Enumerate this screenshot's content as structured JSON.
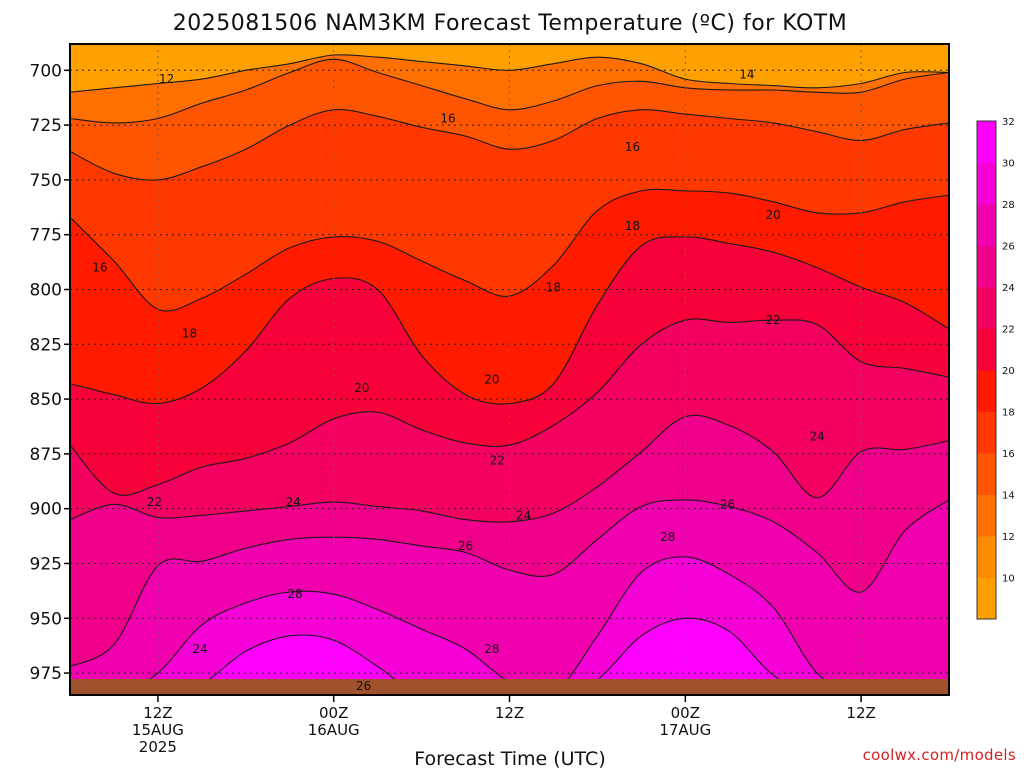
{
  "chart_data": {
    "type": "heatmap",
    "title": "2025081506 NAM3KM Forecast Temperature (ºC) for KOTM",
    "xlabel": "Forecast Time (UTC)",
    "ylabel": "",
    "credit": "coolwx.com/models",
    "y_axis": {
      "ticks": [
        700,
        725,
        750,
        775,
        800,
        825,
        850,
        875,
        900,
        925,
        950,
        975
      ],
      "range": [
        688,
        985
      ]
    },
    "x_axis": {
      "range_hours": [
        -5,
        45
      ],
      "ticks": [
        {
          "hour": 0,
          "line1": "12Z",
          "line2": "15AUG",
          "line3": "2025"
        },
        {
          "hour": 10,
          "line1": "00Z",
          "line2": "16AUG",
          "line3": ""
        },
        {
          "hour": 20,
          "line1": "12Z",
          "line2": "",
          "line3": ""
        },
        {
          "hour": 30,
          "line1": "00Z",
          "line2": "17AUG",
          "line3": ""
        },
        {
          "hour": 40,
          "line1": "12Z",
          "line2": "",
          "line3": ""
        }
      ]
    },
    "colorbar": {
      "labels": [
        10,
        12,
        14,
        16,
        18,
        20,
        22,
        24,
        26,
        28,
        30,
        32
      ],
      "colors": [
        "#FFA000",
        "#FF8C00",
        "#FF7000",
        "#FF5500",
        "#FF3800",
        "#FF1A00",
        "#F8003A",
        "#F40060",
        "#F0008A",
        "#F000AE",
        "#F600D8",
        "#FF00FF"
      ]
    },
    "isotherms": [
      {
        "temp": 12,
        "pressure": [
          710,
          708,
          706,
          704,
          700,
          697,
          693,
          694,
          696,
          698,
          700,
          697,
          694,
          697,
          704,
          706,
          707,
          708,
          706,
          701,
          701
        ]
      },
      {
        "temp": 14,
        "pressure": [
          722,
          724,
          722,
          715,
          709,
          701,
          695,
          701,
          707,
          713,
          718,
          714,
          707,
          705,
          708,
          709,
          709,
          710,
          710,
          704,
          701
        ]
      },
      {
        "temp": 16,
        "pressure": [
          737,
          747,
          750,
          744,
          736,
          725,
          718,
          721,
          726,
          730,
          736,
          732,
          722,
          718,
          720,
          722,
          724,
          728,
          732,
          727,
          724
        ]
      },
      {
        "temp": 18,
        "pressure": [
          767,
          787,
          809,
          804,
          793,
          781,
          776,
          778,
          787,
          796,
          803,
          789,
          764,
          755,
          755,
          756,
          760,
          765,
          765,
          760,
          757
        ]
      },
      {
        "temp": 20,
        "pressure": [
          843,
          848,
          852,
          845,
          828,
          804,
          795,
          800,
          830,
          848,
          852,
          843,
          807,
          780,
          776,
          779,
          783,
          790,
          799,
          806,
          818
        ]
      },
      {
        "temp": 22,
        "pressure": [
          871,
          893,
          889,
          881,
          877,
          870,
          859,
          856,
          864,
          870,
          871,
          862,
          847,
          825,
          814,
          815,
          814,
          816,
          833,
          836,
          840
        ]
      },
      {
        "temp": 24,
        "pressure": [
          905,
          898,
          904,
          903,
          901,
          899,
          897,
          899,
          901,
          905,
          906,
          902,
          890,
          874,
          858,
          862,
          874,
          895,
          874,
          873,
          869
        ]
      },
      {
        "temp": 26,
        "pressure": [
          972,
          962,
          926,
          924,
          918,
          914,
          913,
          914,
          917,
          920,
          928,
          930,
          914,
          899,
          896,
          899,
          906,
          920,
          938,
          910,
          896
        ]
      },
      {
        "temp": 28,
        "pressure": [
          986,
          986,
          975,
          953,
          943,
          938,
          939,
          946,
          955,
          964,
          979,
          984,
          958,
          929,
          922,
          930,
          945,
          975,
          986,
          986,
          986
        ]
      },
      {
        "temp": 30,
        "pressure": [
          986,
          986,
          986,
          980,
          965,
          958,
          960,
          972,
          986,
          986,
          986,
          986,
          978,
          958,
          950,
          956,
          976,
          986,
          986,
          986,
          986
        ]
      }
    ],
    "contour_labels": [
      {
        "text": "12",
        "hour": 0.5,
        "pressure": 704
      },
      {
        "text": "14",
        "hour": 33.5,
        "pressure": 702
      },
      {
        "text": "16",
        "hour": 16.5,
        "pressure": 722
      },
      {
        "text": "16",
        "hour": 27.0,
        "pressure": 735
      },
      {
        "text": "16",
        "hour": -3.3,
        "pressure": 790
      },
      {
        "text": "18",
        "hour": 27.0,
        "pressure": 771
      },
      {
        "text": "18",
        "hour": 22.5,
        "pressure": 799
      },
      {
        "text": "18",
        "hour": 1.8,
        "pressure": 820
      },
      {
        "text": "20",
        "hour": 35.0,
        "pressure": 766
      },
      {
        "text": "20",
        "hour": 11.6,
        "pressure": 845
      },
      {
        "text": "20",
        "hour": 19.0,
        "pressure": 841
      },
      {
        "text": "22",
        "hour": 35.0,
        "pressure": 814
      },
      {
        "text": "22",
        "hour": 19.3,
        "pressure": 878
      },
      {
        "text": "22",
        "hour": -0.2,
        "pressure": 897
      },
      {
        "text": "24",
        "hour": 37.5,
        "pressure": 867
      },
      {
        "text": "24",
        "hour": 7.7,
        "pressure": 897
      },
      {
        "text": "24",
        "hour": 20.8,
        "pressure": 903
      },
      {
        "text": "26",
        "hour": 32.4,
        "pressure": 898
      },
      {
        "text": "26",
        "hour": 17.5,
        "pressure": 917
      },
      {
        "text": "26",
        "hour": 11.7,
        "pressure": 981
      },
      {
        "text": "28",
        "hour": 29.0,
        "pressure": 913
      },
      {
        "text": "28",
        "hour": 7.8,
        "pressure": 939
      },
      {
        "text": "28",
        "hour": 19.0,
        "pressure": 964
      },
      {
        "text": "24",
        "hour": 2.4,
        "pressure": 964
      }
    ],
    "grid": true
  }
}
